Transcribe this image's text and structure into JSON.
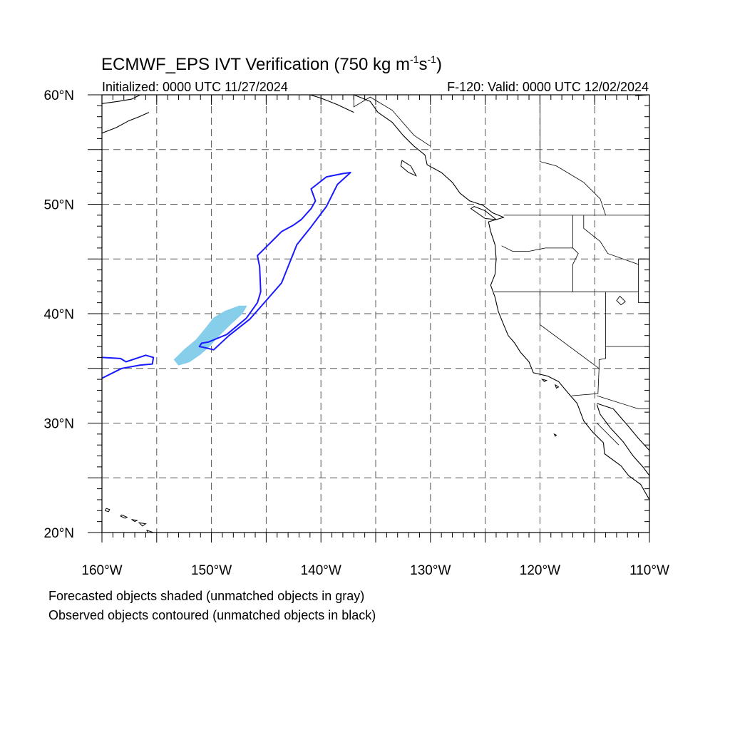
{
  "header": {
    "title": "ECMWF_EPS IVT Verification (750 kg m",
    "title_unit_exp1": "-1",
    "title_unit_mid": "s",
    "title_unit_exp2": "-1",
    "title_close": ")",
    "initialized": "Initialized: 0000 UTC 11/27/2024",
    "valid": "F-120: Valid: 0000 UTC 12/02/2024"
  },
  "map": {
    "lon_range": [
      -160,
      -110
    ],
    "lat_range": [
      20,
      60
    ],
    "lat_labels": [
      {
        "lat": 60,
        "label": "60°N"
      },
      {
        "lat": 50,
        "label": "50°N"
      },
      {
        "lat": 40,
        "label": "40°N"
      },
      {
        "lat": 30,
        "label": "30°N"
      },
      {
        "lat": 20,
        "label": "20°N"
      }
    ],
    "lon_labels": [
      {
        "lon": -160,
        "label": "160°W"
      },
      {
        "lon": -150,
        "label": "150°W"
      },
      {
        "lon": -140,
        "label": "140°W"
      },
      {
        "lon": -130,
        "label": "130°W"
      },
      {
        "lon": -120,
        "label": "120°W"
      },
      {
        "lon": -110,
        "label": "110°W"
      }
    ],
    "grid_lon_step": 5,
    "grid_lat_step": 5,
    "colors": {
      "forecast_fill": "#87ceeb",
      "observed_contour": "#1a1aff",
      "coast": "#000000",
      "grid": "#555555"
    },
    "forecast_object": [
      [
        -153.0,
        35.3
      ],
      [
        -152.0,
        35.6
      ],
      [
        -151.0,
        36.3
      ],
      [
        -150.2,
        37.0
      ],
      [
        -149.5,
        37.8
      ],
      [
        -148.3,
        39.0
      ],
      [
        -147.2,
        40.0
      ],
      [
        -146.8,
        40.7
      ],
      [
        -147.5,
        40.7
      ],
      [
        -148.8,
        40.2
      ],
      [
        -149.8,
        39.6
      ],
      [
        -150.5,
        38.7
      ],
      [
        -151.4,
        37.6
      ],
      [
        -152.5,
        36.7
      ],
      [
        -153.4,
        35.8
      ]
    ],
    "observed_object_main": [
      [
        -150.3,
        37.4
      ],
      [
        -148.6,
        38.1
      ],
      [
        -146.8,
        39.6
      ],
      [
        -145.8,
        41.0
      ],
      [
        -145.5,
        42.0
      ],
      [
        -145.6,
        44.3
      ],
      [
        -145.8,
        45.3
      ],
      [
        -144.8,
        46.3
      ],
      [
        -143.6,
        47.5
      ],
      [
        -142.5,
        48.1
      ],
      [
        -141.8,
        48.6
      ],
      [
        -140.9,
        49.6
      ],
      [
        -140.5,
        50.3
      ],
      [
        -140.9,
        51.4
      ],
      [
        -139.5,
        52.5
      ],
      [
        -138.0,
        52.8
      ],
      [
        -137.3,
        52.9
      ],
      [
        -138.5,
        51.8
      ],
      [
        -139.5,
        49.8
      ],
      [
        -141.0,
        47.8
      ],
      [
        -142.2,
        46.3
      ],
      [
        -142.8,
        44.8
      ],
      [
        -143.6,
        42.8
      ],
      [
        -145.0,
        41.2
      ],
      [
        -146.5,
        39.5
      ],
      [
        -148.4,
        38.0
      ],
      [
        -149.8,
        36.7
      ],
      [
        -150.6,
        36.9
      ],
      [
        -151.1,
        37.0
      ],
      [
        -150.9,
        37.3
      ]
    ],
    "observed_object_west": [
      [
        -160.0,
        36.0
      ],
      [
        -158.3,
        35.9
      ],
      [
        -157.8,
        35.6
      ],
      [
        -156.0,
        36.2
      ],
      [
        -155.3,
        36.0
      ],
      [
        -155.4,
        35.4
      ],
      [
        -156.5,
        35.3
      ],
      [
        -158.2,
        35.0
      ],
      [
        -160.0,
        34.1
      ]
    ],
    "coast_na": [
      [
        -137.0,
        60.0
      ],
      [
        -135.5,
        59.4
      ],
      [
        -134.8,
        58.4
      ],
      [
        -133.5,
        57.5
      ],
      [
        -132.5,
        56.3
      ],
      [
        -131.5,
        55.3
      ],
      [
        -130.5,
        54.5
      ],
      [
        -130.3,
        53.6
      ],
      [
        -129.0,
        52.9
      ],
      [
        -128.0,
        52.0
      ],
      [
        -127.3,
        51.0
      ],
      [
        -126.4,
        50.3
      ],
      [
        -125.2,
        49.9
      ],
      [
        -124.3,
        49.2
      ],
      [
        -123.3,
        48.8
      ],
      [
        -124.7,
        48.4
      ],
      [
        -124.5,
        47.5
      ],
      [
        -124.1,
        46.3
      ],
      [
        -124.0,
        45.0
      ],
      [
        -124.1,
        43.6
      ],
      [
        -124.5,
        42.6
      ],
      [
        -124.1,
        41.5
      ],
      [
        -123.8,
        40.2
      ],
      [
        -123.4,
        39.2
      ],
      [
        -122.9,
        38.0
      ],
      [
        -122.3,
        37.3
      ],
      [
        -121.8,
        36.5
      ],
      [
        -121.0,
        35.6
      ],
      [
        -120.6,
        34.6
      ],
      [
        -119.3,
        34.3
      ],
      [
        -118.3,
        33.8
      ],
      [
        -117.3,
        32.6
      ],
      [
        -116.6,
        31.8
      ],
      [
        -116.0,
        30.2
      ],
      [
        -115.2,
        29.2
      ],
      [
        -114.2,
        28.2
      ],
      [
        -114.1,
        27.2
      ],
      [
        -112.6,
        26.1
      ],
      [
        -111.9,
        25.2
      ],
      [
        -110.8,
        24.4
      ],
      [
        -110.0,
        23.0
      ]
    ],
    "coast_baja_gulf": [
      [
        -114.8,
        31.7
      ],
      [
        -114.5,
        30.8
      ],
      [
        -113.6,
        29.6
      ],
      [
        -112.4,
        28.3
      ],
      [
        -111.5,
        27.0
      ],
      [
        -110.6,
        26.0
      ],
      [
        -110.0,
        25.2
      ]
    ],
    "coast_mainland_gulf": [
      [
        -114.8,
        31.8
      ],
      [
        -113.3,
        31.3
      ],
      [
        -112.0,
        29.8
      ],
      [
        -111.0,
        28.6
      ],
      [
        -110.0,
        27.5
      ]
    ],
    "coast_alaska": [
      [
        -160.0,
        59.2
      ],
      [
        -158.5,
        59.4
      ],
      [
        -157.3,
        59.6
      ],
      [
        -156.5,
        60.0
      ]
    ],
    "coast_alaska_pen": [
      [
        -160.0,
        56.5
      ],
      [
        -158.7,
        57.0
      ],
      [
        -157.6,
        57.6
      ],
      [
        -156.6,
        58.0
      ],
      [
        -155.7,
        58.4
      ]
    ],
    "coast_gulf_ak": [
      [
        -141.0,
        60.0
      ],
      [
        -140.0,
        59.7
      ],
      [
        -138.5,
        59.1
      ],
      [
        -137.0,
        58.4
      ]
    ],
    "coast_far_ne": [
      [
        -111.3,
        59.9
      ],
      [
        -110.0,
        60.0
      ]
    ],
    "hawaii": [
      [
        [
          -159.6,
          22.2
        ],
        [
          -159.3,
          22.1
        ],
        [
          -159.4,
          21.9
        ],
        [
          -159.7,
          22.0
        ]
      ],
      [
        [
          -158.2,
          21.6
        ],
        [
          -157.7,
          21.4
        ],
        [
          -157.9,
          21.3
        ],
        [
          -158.3,
          21.5
        ]
      ],
      [
        [
          -157.3,
          21.2
        ],
        [
          -156.8,
          21.1
        ],
        [
          -157.0,
          21.0
        ]
      ],
      [
        [
          -156.6,
          20.9
        ],
        [
          -156.0,
          20.8
        ],
        [
          -156.3,
          20.6
        ]
      ],
      [
        [
          -155.9,
          20.2
        ],
        [
          -155.0,
          19.9
        ],
        [
          -155.7,
          19.6
        ]
      ]
    ],
    "islands": [
      [
        [
          -126.0,
          49.8
        ],
        [
          -125.0,
          49.4
        ],
        [
          -124.0,
          48.6
        ],
        [
          -125.0,
          48.7
        ],
        [
          -126.3,
          49.6
        ]
      ],
      [
        [
          -132.6,
          54.0
        ],
        [
          -131.8,
          53.5
        ],
        [
          -131.3,
          52.6
        ],
        [
          -132.0,
          52.9
        ],
        [
          -132.7,
          53.5
        ]
      ],
      [
        [
          -119.8,
          34.0
        ],
        [
          -119.4,
          33.9
        ],
        [
          -119.6,
          33.8
        ]
      ],
      [
        [
          -118.6,
          33.5
        ],
        [
          -118.3,
          33.3
        ],
        [
          -118.5,
          33.2
        ]
      ],
      [
        [
          -118.7,
          29.0
        ],
        [
          -118.5,
          28.9
        ],
        [
          -118.6,
          28.8
        ]
      ]
    ],
    "borders": [
      [
        [
          -123.3,
          49.0
        ],
        [
          -110.0,
          49.0
        ]
      ],
      [
        [
          -124.2,
          42.0
        ],
        [
          -111.0,
          42.0
        ]
      ],
      [
        [
          -117.0,
          49.0
        ],
        [
          -117.0,
          46.0
        ],
        [
          -116.5,
          45.5
        ],
        [
          -117.0,
          44.5
        ],
        [
          -117.0,
          42.0
        ]
      ],
      [
        [
          -123.5,
          46.2
        ],
        [
          -122.5,
          45.7
        ],
        [
          -121.0,
          45.7
        ],
        [
          -119.5,
          46.0
        ],
        [
          -117.0,
          46.0
        ]
      ],
      [
        [
          -116.0,
          49.0
        ],
        [
          -116.0,
          47.8
        ],
        [
          -114.5,
          46.6
        ],
        [
          -113.8,
          45.5
        ],
        [
          -111.0,
          44.5
        ]
      ],
      [
        [
          -111.0,
          45.0
        ],
        [
          -110.0,
          45.0
        ]
      ],
      [
        [
          -111.0,
          45.0
        ],
        [
          -111.0,
          41.0
        ],
        [
          -110.0,
          41.0
        ]
      ],
      [
        [
          -114.0,
          42.0
        ],
        [
          -114.0,
          35.9
        ],
        [
          -114.6,
          35.8
        ],
        [
          -114.6,
          34.9
        ]
      ],
      [
        [
          -120.0,
          42.0
        ],
        [
          -120.0,
          39.0
        ],
        [
          -114.6,
          35.0
        ]
      ],
      [
        [
          -114.6,
          35.0
        ],
        [
          -114.7,
          32.7
        ],
        [
          -117.1,
          32.5
        ]
      ],
      [
        [
          -114.0,
          37.0
        ],
        [
          -110.0,
          37.0
        ]
      ],
      [
        [
          -114.8,
          32.5
        ],
        [
          -111.0,
          31.3
        ],
        [
          -110.0,
          31.3
        ]
      ],
      [
        [
          -137.0,
          60.0
        ],
        [
          -137.0,
          58.9
        ],
        [
          -135.5,
          59.8
        ],
        [
          -133.5,
          58.6
        ],
        [
          -131.5,
          56.3
        ],
        [
          -130.0,
          55.3
        ]
      ],
      [
        [
          -120.0,
          60.0
        ],
        [
          -120.0,
          53.9
        ],
        [
          -118.5,
          53.5
        ],
        [
          -116.0,
          52.0
        ],
        [
          -114.5,
          50.5
        ],
        [
          -114.0,
          49.0
        ]
      ],
      [
        [
          -114.8,
          30.0
        ],
        [
          -112.8,
          28.0
        ]
      ]
    ],
    "lakes": [
      [
        [
          -112.7,
          41.6
        ],
        [
          -112.2,
          41.1
        ],
        [
          -112.6,
          40.8
        ],
        [
          -113.0,
          41.2
        ]
      ]
    ]
  },
  "footer": {
    "line1": "Forecasted objects shaded (unmatched objects in gray)",
    "line2": "Observed objects contoured (unmatched objects in black)"
  }
}
